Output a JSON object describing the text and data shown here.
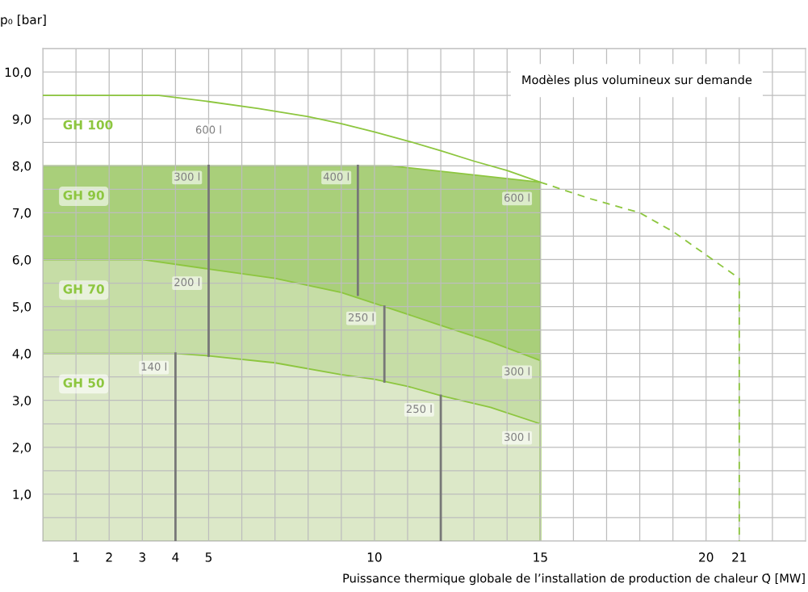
{
  "chart_data": {
    "type": "area",
    "xlabel": "Puissance thermique globale de l’installation de production de chaleur Q̇ [MW]",
    "ylabel": "p₀ [bar]",
    "xlim": [
      0,
      23
    ],
    "ylim": [
      0,
      10.5
    ],
    "xticks": [
      {
        "value": 0,
        "label": null
      },
      1,
      2,
      3,
      4,
      5,
      {
        "value": 6,
        "label": null
      },
      {
        "value": 7,
        "label": null
      },
      {
        "value": 8,
        "label": null
      },
      {
        "value": 9,
        "label": null
      },
      10,
      {
        "value": 11,
        "label": null
      },
      {
        "value": 12,
        "label": null
      },
      {
        "value": 13,
        "label": null
      },
      {
        "value": 14,
        "label": null
      },
      15,
      {
        "value": 16,
        "label": null
      },
      {
        "value": 17,
        "label": null
      },
      {
        "value": 18,
        "label": null
      },
      {
        "value": 19,
        "label": null
      },
      20,
      21,
      {
        "value": 22,
        "label": null
      }
    ],
    "yticks": [
      {
        "value": 0,
        "label": null
      },
      {
        "value": 0.5,
        "label": null
      },
      {
        "value": 1,
        "label": "1,0"
      },
      {
        "value": 1.5,
        "label": null
      },
      {
        "value": 2,
        "label": "2,0"
      },
      {
        "value": 2.5,
        "label": null
      },
      {
        "value": 3,
        "label": "3,0"
      },
      {
        "value": 3.5,
        "label": null
      },
      {
        "value": 4,
        "label": "4,0"
      },
      {
        "value": 4.5,
        "label": null
      },
      {
        "value": 5,
        "label": "5,0"
      },
      {
        "value": 5.5,
        "label": null
      },
      {
        "value": 6,
        "label": "6,0"
      },
      {
        "value": 6.5,
        "label": null
      },
      {
        "value": 7,
        "label": "7,0"
      },
      {
        "value": 7.5,
        "label": null
      },
      {
        "value": 8,
        "label": "8,0"
      },
      {
        "value": 8.5,
        "label": null
      },
      {
        "value": 9,
        "label": "9,0"
      },
      {
        "value": 9.5,
        "label": null
      },
      {
        "value": 10,
        "label": "10,0"
      },
      {
        "value": 10.5,
        "label": null
      }
    ],
    "grid": true,
    "series": [
      {
        "name": "GH 90",
        "color": "#a9cf7a",
        "x": [
          0,
          10.5,
          15
        ],
        "values": [
          8.0,
          8.0,
          7.65
        ]
      },
      {
        "name": "GH 70",
        "color": "#c6dda6",
        "x": [
          0,
          3,
          5,
          7,
          9,
          10.3,
          12,
          13.5,
          15
        ],
        "values": [
          6.0,
          6.0,
          5.8,
          5.6,
          5.3,
          5.0,
          4.6,
          4.25,
          3.85
        ]
      },
      {
        "name": "GH 50",
        "color": "#dce8c8",
        "x": [
          0,
          4,
          5,
          7,
          9,
          10,
          11,
          12,
          13.5,
          15
        ],
        "values": [
          4.0,
          4.0,
          3.95,
          3.8,
          3.55,
          3.45,
          3.3,
          3.1,
          2.85,
          2.5
        ]
      },
      {
        "name": "GH 100",
        "type": "line",
        "color": "#8dc63f",
        "line_style": "solid",
        "x": [
          0,
          3.5,
          5,
          6.5,
          8,
          9,
          10,
          11,
          12,
          13,
          14,
          15
        ],
        "values": [
          9.5,
          9.5,
          9.37,
          9.22,
          9.05,
          8.9,
          8.72,
          8.53,
          8.32,
          8.1,
          7.9,
          7.65
        ]
      },
      {
        "type": "line",
        "color": "#8dc63f",
        "line_style": "dashed",
        "x": [
          15,
          16.5,
          18,
          19,
          20,
          21,
          21
        ],
        "values": [
          7.65,
          7.3,
          7.0,
          6.6,
          6.1,
          5.6,
          0
        ]
      },
      {
        "type": "line",
        "color": "#777777",
        "line_style": "solid",
        "x": [
          4,
          4
        ],
        "values": [
          0,
          4.0
        ]
      },
      {
        "type": "line",
        "color": "#777777",
        "line_style": "solid",
        "x": [
          5,
          5
        ],
        "values": [
          3.95,
          8.0
        ]
      },
      {
        "type": "line",
        "color": "#777777",
        "line_style": "solid",
        "x": [
          9.5,
          9.5
        ],
        "values": [
          5.25,
          8.0
        ]
      },
      {
        "type": "line",
        "color": "#777777",
        "line_style": "solid",
        "x": [
          10.3,
          10.3
        ],
        "values": [
          3.4,
          5.0
        ]
      },
      {
        "type": "line",
        "color": "#777777",
        "line_style": "solid",
        "x": [
          12,
          12
        ],
        "values": [
          0,
          3.1
        ]
      }
    ],
    "annotations": [
      {
        "text": "600 l",
        "x": 5.0,
        "y": 8.75
      },
      {
        "text": "300 l",
        "x": 4.35,
        "y": 7.75
      },
      {
        "text": "400 l",
        "x": 8.85,
        "y": 7.75
      },
      {
        "text": "600 l",
        "x": 14.3,
        "y": 7.3
      },
      {
        "text": "200 l",
        "x": 4.35,
        "y": 5.5
      },
      {
        "text": "250 l",
        "x": 9.6,
        "y": 4.75
      },
      {
        "text": "140 l",
        "x": 3.35,
        "y": 3.7
      },
      {
        "text": "300 l",
        "x": 14.3,
        "y": 3.6
      },
      {
        "text": "250 l",
        "x": 11.35,
        "y": 2.8
      },
      {
        "text": "300 l",
        "x": 14.3,
        "y": 2.2
      },
      "Modèles plus volumineux sur demande"
    ]
  }
}
